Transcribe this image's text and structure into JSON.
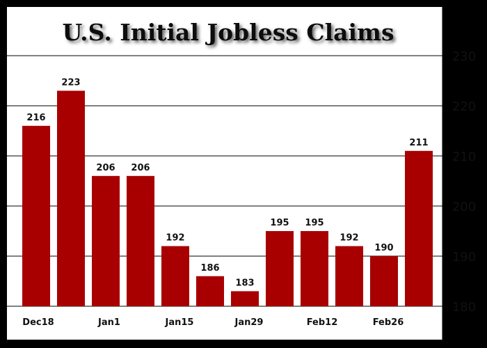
{
  "chart_data": {
    "type": "bar",
    "title": "U.S. Initial Jobless Claims",
    "categories": [
      "Dec18",
      "",
      "Jan1",
      "",
      "Jan15",
      "",
      "Jan29",
      "",
      "Feb12",
      "",
      "Feb26",
      ""
    ],
    "values": [
      216,
      223,
      206,
      206,
      192,
      186,
      183,
      195,
      195,
      192,
      190,
      211
    ],
    "data_labels": [
      "216",
      "223",
      "206",
      "206",
      "192",
      "186",
      "183",
      "195",
      "195",
      "192",
      "190",
      "211"
    ],
    "x_tick_labels": [
      "Dec18",
      "Jan1",
      "Jan15",
      "Jan29",
      "Feb12",
      "Feb26"
    ],
    "y_ticks": [
      "180",
      "190",
      "200",
      "210",
      "220",
      "230"
    ],
    "ylim": [
      180,
      240
    ],
    "y_axis_side": "right",
    "grid": true,
    "colors": {
      "bar_top": "#FFC000",
      "bar_mid": "#E08000",
      "bar_bottom": "#A80000",
      "background": "#FFFFFF",
      "frame": "#000000"
    }
  }
}
